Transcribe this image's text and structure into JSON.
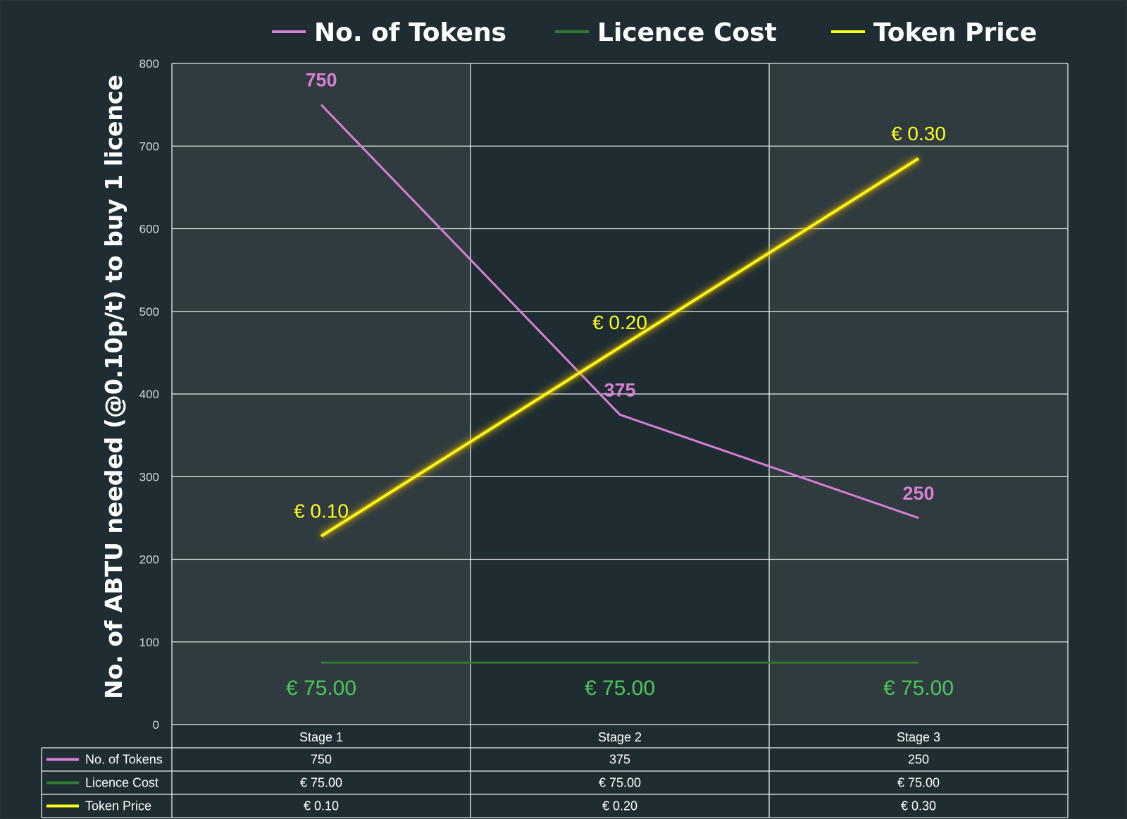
{
  "chart_data": {
    "type": "line",
    "categories": [
      "Stage 1",
      "Stage 2",
      "Stage 3"
    ],
    "ylabel": "No. of ABTU needed (@0.10p/t) to buy 1 licence",
    "ylim": [
      0,
      800
    ],
    "yticks": [
      0,
      100,
      200,
      300,
      400,
      500,
      600,
      700,
      800
    ],
    "grid": true,
    "legend_position": "top",
    "series": [
      {
        "name": "No. of Tokens",
        "values": [
          750,
          375,
          250
        ],
        "labels": [
          "750",
          "375",
          "250"
        ],
        "color": "#d87fd8",
        "axis": "left"
      },
      {
        "name": "Licence Cost",
        "values": [
          75,
          75,
          75
        ],
        "labels": [
          "€ 75.00",
          "€ 75.00",
          "€ 75.00"
        ],
        "color": "#2e7d32",
        "label_color": "#4cc85a",
        "axis": "left"
      },
      {
        "name": "Token Price",
        "values": [
          0.1,
          0.2,
          0.3
        ],
        "labels": [
          "€ 0.10",
          "€ 0.20",
          "€ 0.30"
        ],
        "color": "#ffff1a",
        "axis": "secondary",
        "axis_note": "hidden secondary axis"
      }
    ],
    "data_table": {
      "rows": [
        {
          "label": "No. of Tokens",
          "values": [
            "750",
            "375",
            "250"
          ]
        },
        {
          "label": "Licence Cost",
          "values": [
            "€ 75.00",
            "€ 75.00",
            "€ 75.00"
          ]
        },
        {
          "label": "Token Price",
          "values": [
            "€ 0.10",
            "€ 0.20",
            "€ 0.30"
          ]
        }
      ]
    }
  }
}
